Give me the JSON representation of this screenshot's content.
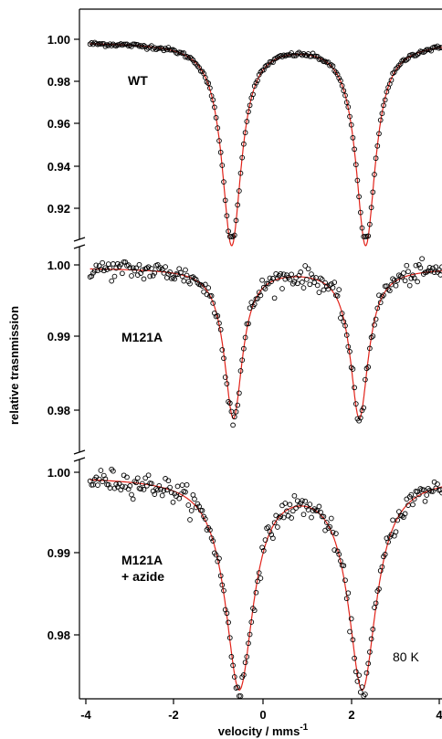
{
  "chart_data": {
    "type": "scatter",
    "xlabel": "velocity / mms",
    "xlabel_superscript": "-1",
    "ylabel": "relative trasnmission",
    "x_ticks": [
      "-4",
      "-2",
      "0",
      "2",
      "4"
    ],
    "xlim": [
      -4.25,
      4.3
    ],
    "annotation": "80 K",
    "panels": [
      {
        "name": "WT",
        "label_lines": [
          "WT"
        ],
        "ylim": [
          0.905,
          1.005
        ],
        "y_ticks": [
          "1.00",
          "0.98",
          "0.96",
          "0.94",
          "0.92"
        ],
        "y_tick_values": [
          1.0,
          0.98,
          0.96,
          0.94,
          0.92
        ],
        "fit": {
          "baseline": 0.9987,
          "lines": [
            {
              "center": -0.66,
              "width": 0.28,
              "depth": 0.0957
            },
            {
              "center": 2.5,
              "width": 0.28,
              "depth": 0.0957
            }
          ]
        },
        "noise": 0.0005,
        "n_points": 230
      },
      {
        "name": "M121A",
        "label_lines": [
          "M121A"
        ],
        "ylim": [
          0.9755,
          1.0022
        ],
        "y_ticks": [
          "1.00",
          "0.99",
          "0.98"
        ],
        "y_tick_values": [
          1.0,
          0.99,
          0.98
        ],
        "fit": {
          "baseline": 0.9996,
          "lines": [
            {
              "center": -0.62,
              "width": 0.26,
              "depth": 0.0206
            },
            {
              "center": 2.35,
              "width": 0.26,
              "depth": 0.0206
            }
          ]
        },
        "noise": 0.0007,
        "n_points": 230
      },
      {
        "name": "M121A + azide",
        "label_lines": [
          "M121A",
          "+ azide"
        ],
        "ylim": [
          0.9727,
          1.0022
        ],
        "y_ticks": [
          "1.00",
          "0.99",
          "0.98"
        ],
        "y_tick_values": [
          1.0,
          0.99,
          0.98
        ],
        "fit": {
          "baseline": 0.9995,
          "lines": [
            {
              "center": -0.48,
              "width": 0.4,
              "depth": 0.0258
            },
            {
              "center": 2.42,
              "width": 0.4,
              "depth": 0.0258
            }
          ]
        },
        "noise": 0.0007,
        "n_points": 230
      }
    ]
  }
}
